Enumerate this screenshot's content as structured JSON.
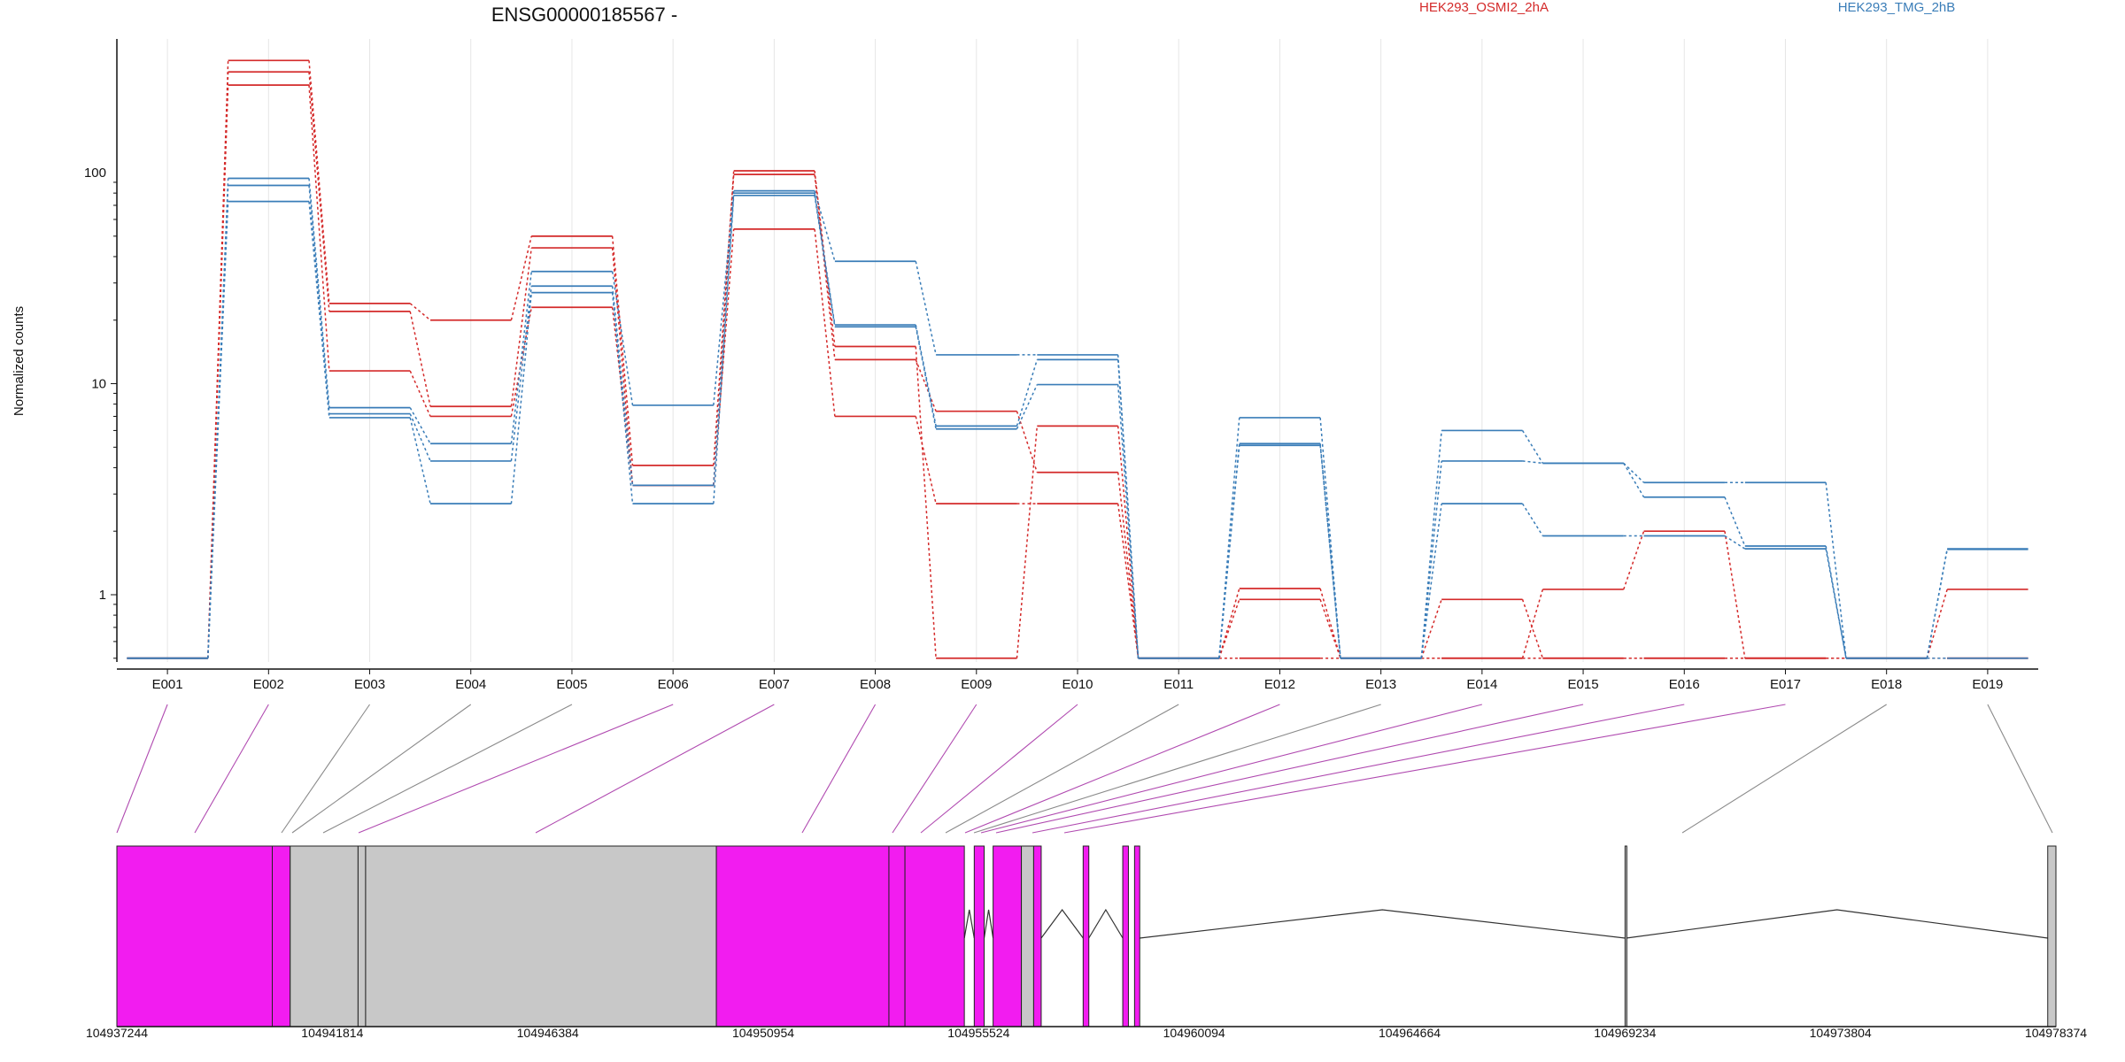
{
  "colors": {
    "series_a": "#d42a2a",
    "series_b": "#3a7db8",
    "exon_tested": "#f21cf0",
    "exon_other": "#c8c8c8",
    "connector_tested": "#b04ab0",
    "connector_other": "#8a8a8a",
    "grid": "#e6e6e6"
  },
  "chart_data": {
    "type": "line",
    "title": "ENSG00000185567 -",
    "ylabel": "Normalized counts",
    "xlabel": "",
    "y_scale": "log",
    "ylim": [
      0.48,
      430
    ],
    "y_ticks": [
      {
        "value": 1,
        "label": "1"
      },
      {
        "value": 10,
        "label": "10"
      },
      {
        "value": 100,
        "label": "100"
      }
    ],
    "grid": "vertical",
    "legend_placement": "top-right",
    "categories": [
      "E001",
      "E002",
      "E003",
      "E004",
      "E005",
      "E006",
      "E007",
      "E008",
      "E009",
      "E010",
      "E011",
      "E012",
      "E013",
      "E014",
      "E015",
      "E016",
      "E017",
      "E018",
      "E019"
    ],
    "series": [
      {
        "name": "HEK293_OSMI2_2hA",
        "color": "#d42a2a",
        "values": [
          0.5,
          340,
          24,
          20,
          50,
          4.1,
          102,
          15,
          0.5,
          6.3,
          0.5,
          1.07,
          0.5,
          0.5,
          1.06,
          2.0,
          0.5,
          0.5,
          1.06
        ]
      },
      {
        "name": "HEK293_OSMI2_2hA",
        "color": "#d42a2a",
        "values": [
          0.5,
          300,
          22,
          7.8,
          44,
          3.3,
          98,
          13,
          7.4,
          3.8,
          0.5,
          0.95,
          0.5,
          0.95,
          0.5,
          0.5,
          0.5,
          0.5,
          0.5
        ]
      },
      {
        "name": "HEK293_OSMI2_2hA",
        "color": "#d42a2a",
        "values": [
          0.5,
          260,
          11.5,
          7.0,
          23,
          3.3,
          54,
          7.0,
          2.7,
          2.7,
          0.5,
          0.5,
          0.5,
          0.5,
          0.5,
          0.5,
          0.5,
          0.5,
          0.5
        ]
      },
      {
        "name": "HEK293_TMG_2hB",
        "color": "#3a7db8",
        "values": [
          0.5,
          94,
          7.7,
          5.2,
          34,
          7.9,
          82,
          38,
          13.7,
          13.7,
          0.5,
          6.9,
          0.5,
          6.0,
          4.2,
          3.4,
          3.4,
          0.5,
          1.65
        ]
      },
      {
        "name": "HEK293_TMG_2hB",
        "color": "#3a7db8",
        "values": [
          0.5,
          87,
          7.2,
          4.3,
          29,
          3.3,
          80,
          19,
          6.3,
          13,
          0.5,
          5.2,
          0.5,
          4.3,
          4.2,
          2.9,
          1.7,
          0.5,
          1.64
        ]
      },
      {
        "name": "HEK293_TMG_2hB",
        "color": "#3a7db8",
        "values": [
          0.5,
          73,
          6.9,
          2.7,
          27,
          2.7,
          78,
          18.6,
          6.1,
          9.9,
          0.5,
          5.1,
          0.5,
          2.7,
          1.9,
          1.9,
          1.65,
          0.5,
          0.5
        ]
      }
    ],
    "legend": [
      {
        "label": "HEK293_OSMI2_2hA",
        "color": "#d42a2a"
      },
      {
        "label": "HEK293_TMG_2hB",
        "color": "#3a7db8"
      }
    ]
  },
  "gene_model": {
    "genomic_ticks": [
      "104937244",
      "104941814",
      "104946384",
      "104950954",
      "104955524",
      "104960094",
      "104964664",
      "104969234",
      "104973804",
      "104978374"
    ],
    "genomic_start": 104937244,
    "genomic_end": 104978374,
    "exon_tested": [
      true,
      true,
      false,
      false,
      false,
      true,
      true,
      true,
      true,
      true,
      false,
      true,
      false,
      true,
      true,
      true,
      true,
      false,
      false
    ]
  }
}
